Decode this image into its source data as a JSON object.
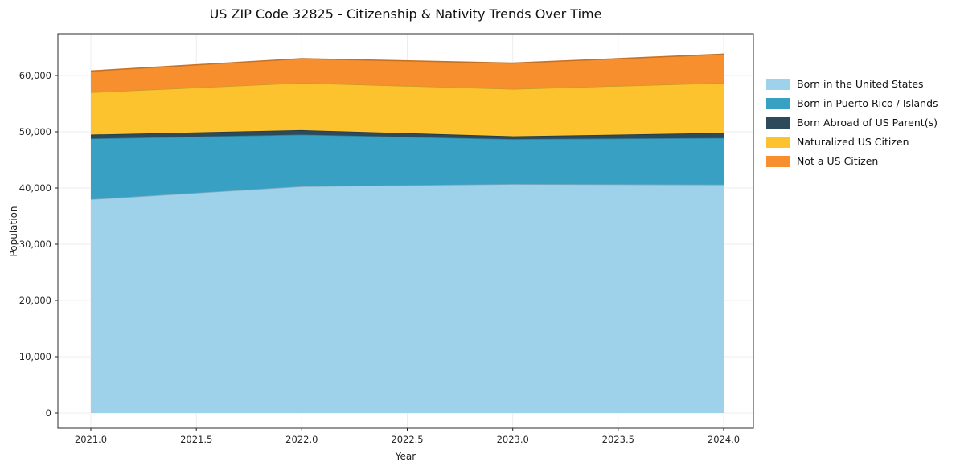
{
  "chart_data": {
    "type": "area",
    "stacked": true,
    "title": "US ZIP Code 32825 - Citizenship & Nativity Trends Over Time",
    "xlabel": "Year",
    "ylabel": "Population",
    "grid": true,
    "legend_position": "right",
    "x": [
      2021,
      2022,
      2023,
      2024
    ],
    "xticks": [
      "2021.0",
      "2021.5",
      "2022.0",
      "2022.5",
      "2023.0",
      "2023.5",
      "2024.0"
    ],
    "yticks": [
      "0",
      "10,000",
      "20,000",
      "30,000",
      "40,000",
      "50,000",
      "60,000"
    ],
    "xlim": [
      2020.85,
      2024.14
    ],
    "ylim": [
      0,
      67000
    ],
    "series": [
      {
        "name": "Born in the United States",
        "color": "#9ed2ea",
        "values": [
          38000,
          40300,
          40700,
          40600
        ]
      },
      {
        "name": "Born in Puerto Rico / Islands",
        "color": "#38a0c3",
        "values": [
          10800,
          9200,
          8000,
          8300
        ]
      },
      {
        "name": "Born Abroad of US Parent(s)",
        "color": "#2d4a5a",
        "values": [
          700,
          800,
          500,
          900
        ]
      },
      {
        "name": "Naturalized US Citizen",
        "color": "#fdc32f",
        "values": [
          7500,
          8400,
          8400,
          8900
        ]
      },
      {
        "name": "Not a US Citizen",
        "color": "#f78f2e",
        "values": [
          3800,
          4300,
          4600,
          5100
        ]
      }
    ]
  }
}
